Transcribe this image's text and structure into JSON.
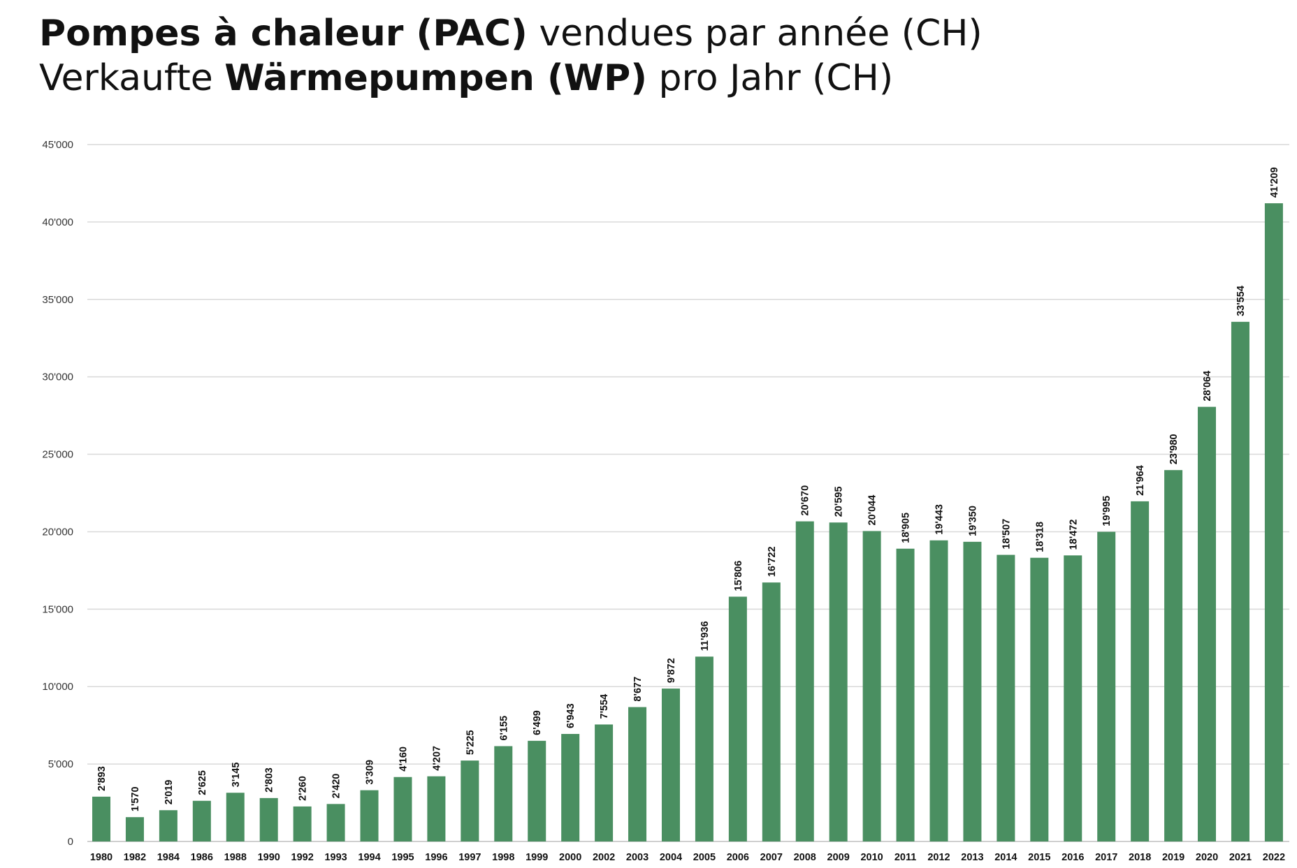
{
  "title": {
    "line1": {
      "bold": "Pompes à chaleur (PAC)",
      "normal": " vendues par année (CH)"
    },
    "line2": {
      "normal": "Verkaufte ",
      "bold": "Wärmepumpen (WP)",
      "tail": " pro Jahr (CH)"
    }
  },
  "chart_data": {
    "type": "bar",
    "title": "Pompes à chaleur (PAC) vendues par année (CH) / Verkaufte Wärmepumpen (WP) pro Jahr (CH)",
    "xlabel": "",
    "ylabel": "",
    "ylim": [
      0,
      45000
    ],
    "yticks": [
      0,
      5000,
      10000,
      15000,
      20000,
      25000,
      30000,
      35000,
      40000,
      45000
    ],
    "ytick_labels": [
      "0",
      "5'000",
      "10'000",
      "15'000",
      "20'000",
      "25'000",
      "30'000",
      "35'000",
      "40'000",
      "45'000"
    ],
    "grid": true,
    "legend": "none",
    "bar_color": "#4a8f61",
    "categories": [
      "1980",
      "1982",
      "1984",
      "1986",
      "1988",
      "1990",
      "1992",
      "1993",
      "1994",
      "1995",
      "1996",
      "1997",
      "1998",
      "1999",
      "2000",
      "2002",
      "2003",
      "2004",
      "2005",
      "2006",
      "2007",
      "2008",
      "2009",
      "2010",
      "2011",
      "2012",
      "2013",
      "2014",
      "2015",
      "2016",
      "2017",
      "2018",
      "2019",
      "2020",
      "2021",
      "2022"
    ],
    "values": [
      2893,
      1570,
      2019,
      2625,
      3145,
      2803,
      2260,
      2420,
      3309,
      4160,
      4207,
      5225,
      6155,
      6499,
      6943,
      7554,
      8677,
      9872,
      11936,
      15806,
      16722,
      20670,
      20595,
      20044,
      18905,
      19443,
      19350,
      18507,
      18318,
      18472,
      19995,
      21964,
      23980,
      28064,
      33554,
      41209
    ],
    "data_labels": [
      "2'893",
      "1'570",
      "2'019",
      "2'625",
      "3'145",
      "2'803",
      "2'260",
      "2'420",
      "3'309",
      "4'160",
      "4'207",
      "5'225",
      "6'155",
      "6'499",
      "6'943",
      "7'554",
      "8'677",
      "9'872",
      "11'936",
      "15'806",
      "16'722",
      "20'670",
      "20'595",
      "20'044",
      "18'905",
      "19'443",
      "19'350",
      "18'507",
      "18'318",
      "18'472",
      "19'995",
      "21'964",
      "23'980",
      "28'064",
      "33'554",
      "41'209"
    ]
  }
}
